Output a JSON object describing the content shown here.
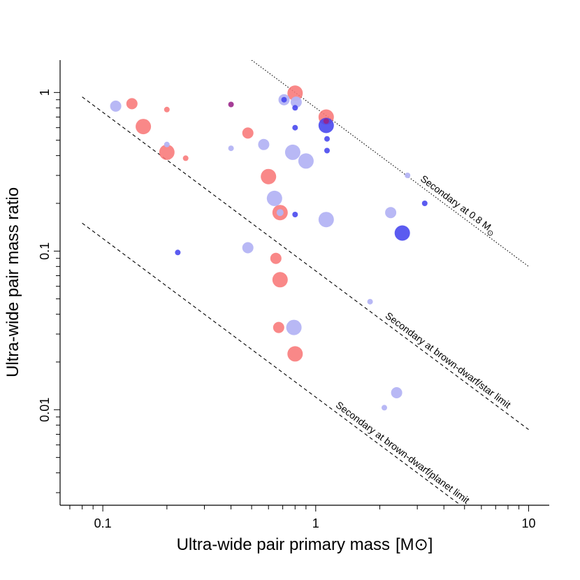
{
  "chart_data": {
    "type": "scatter",
    "title": "",
    "xlabel": "Ultra-wide pair primary mass",
    "xlabel_unit": "[M⊙]",
    "ylabel": "Ultra-wide pair mass ratio",
    "xscale": "log",
    "yscale": "log",
    "xlim": [
      0.063,
      12.5
    ],
    "ylim": [
      0.0025,
      1.6
    ],
    "x_ticks": [
      {
        "value": 0.1,
        "label": "0.1"
      },
      {
        "value": 1,
        "label": "1"
      },
      {
        "value": 10,
        "label": "10"
      }
    ],
    "y_ticks": [
      {
        "value": 0.01,
        "label": "0.01"
      },
      {
        "value": 0.1,
        "label": "0.1"
      },
      {
        "value": 1,
        "label": "1"
      }
    ],
    "grid": false,
    "legend": "none",
    "colors": {
      "red": "#f87878",
      "light_blue": "#b4b4f4",
      "blue": "#4444ee",
      "purple": "#992288"
    },
    "reference_lines": [
      {
        "name": "Secondary at 0.8 M⊙",
        "label_main": "Secondary at 0.8 M",
        "label_sub": "⊙",
        "style": "dotted",
        "secondary_mass": 0.8,
        "x_range": [
          0.5,
          10
        ]
      },
      {
        "name": "Secondary at brown-dwarf/star limit",
        "label_main": "Secondary at brown-dwarf/star limit",
        "label_sub": "",
        "style": "dashed",
        "secondary_mass": 0.075,
        "x_range": [
          0.08,
          10
        ]
      },
      {
        "name": "Secondary at brown-dwarf/planet limit",
        "label_main": "Secondary at brown-dwarf/planet limit",
        "label_sub": "",
        "style": "dashed",
        "secondary_mass": 0.012,
        "x_range": [
          0.08,
          5
        ]
      }
    ],
    "series": [
      {
        "name": "red",
        "color": "#f87878",
        "points": [
          {
            "x": 0.137,
            "y": 0.85,
            "size": 8
          },
          {
            "x": 0.155,
            "y": 0.61,
            "size": 11
          },
          {
            "x": 0.2,
            "y": 0.78,
            "size": 4
          },
          {
            "x": 0.2,
            "y": 0.42,
            "size": 11
          },
          {
            "x": 0.245,
            "y": 0.385,
            "size": 4
          },
          {
            "x": 0.48,
            "y": 0.555,
            "size": 8
          },
          {
            "x": 0.6,
            "y": 0.295,
            "size": 11
          },
          {
            "x": 0.68,
            "y": 0.175,
            "size": 11
          },
          {
            "x": 0.65,
            "y": 0.09,
            "size": 8
          },
          {
            "x": 0.68,
            "y": 0.066,
            "size": 11
          },
          {
            "x": 0.67,
            "y": 0.033,
            "size": 8
          },
          {
            "x": 0.8,
            "y": 0.0225,
            "size": 11
          },
          {
            "x": 0.8,
            "y": 0.99,
            "size": 11
          },
          {
            "x": 1.12,
            "y": 0.7,
            "size": 11
          }
        ]
      },
      {
        "name": "light blue",
        "color": "#b4b4f4",
        "points": [
          {
            "x": 0.115,
            "y": 0.82,
            "size": 8
          },
          {
            "x": 0.2,
            "y": 0.47,
            "size": 4
          },
          {
            "x": 0.4,
            "y": 0.445,
            "size": 4
          },
          {
            "x": 0.57,
            "y": 0.47,
            "size": 8
          },
          {
            "x": 0.78,
            "y": 0.42,
            "size": 11
          },
          {
            "x": 0.9,
            "y": 0.37,
            "size": 11
          },
          {
            "x": 0.64,
            "y": 0.215,
            "size": 11
          },
          {
            "x": 0.68,
            "y": 0.175,
            "size": 5
          },
          {
            "x": 1.12,
            "y": 0.158,
            "size": 11
          },
          {
            "x": 0.48,
            "y": 0.105,
            "size": 8
          },
          {
            "x": 0.79,
            "y": 0.033,
            "size": 11
          },
          {
            "x": 0.71,
            "y": 0.9,
            "size": 8
          },
          {
            "x": 0.81,
            "y": 0.87,
            "size": 8
          },
          {
            "x": 2.25,
            "y": 0.175,
            "size": 8
          },
          {
            "x": 2.7,
            "y": 0.3,
            "size": 4
          },
          {
            "x": 1.8,
            "y": 0.048,
            "size": 4
          },
          {
            "x": 2.4,
            "y": 0.0128,
            "size": 8
          },
          {
            "x": 2.1,
            "y": 0.0103,
            "size": 4
          }
        ]
      },
      {
        "name": "blue",
        "color": "#4444ee",
        "points": [
          {
            "x": 0.225,
            "y": 0.098,
            "size": 4
          },
          {
            "x": 0.71,
            "y": 0.9,
            "size": 4
          },
          {
            "x": 0.8,
            "y": 0.8,
            "size": 4
          },
          {
            "x": 0.8,
            "y": 0.6,
            "size": 4
          },
          {
            "x": 0.8,
            "y": 0.17,
            "size": 4
          },
          {
            "x": 1.12,
            "y": 0.62,
            "size": 11
          },
          {
            "x": 1.13,
            "y": 0.51,
            "size": 4
          },
          {
            "x": 1.13,
            "y": 0.43,
            "size": 4
          },
          {
            "x": 2.55,
            "y": 0.13,
            "size": 11
          },
          {
            "x": 3.25,
            "y": 0.2,
            "size": 4
          }
        ]
      },
      {
        "name": "purple",
        "color": "#992288",
        "points": [
          {
            "x": 0.4,
            "y": 0.84,
            "size": 4
          },
          {
            "x": 1.12,
            "y": 0.66,
            "size": 4
          }
        ]
      }
    ]
  }
}
